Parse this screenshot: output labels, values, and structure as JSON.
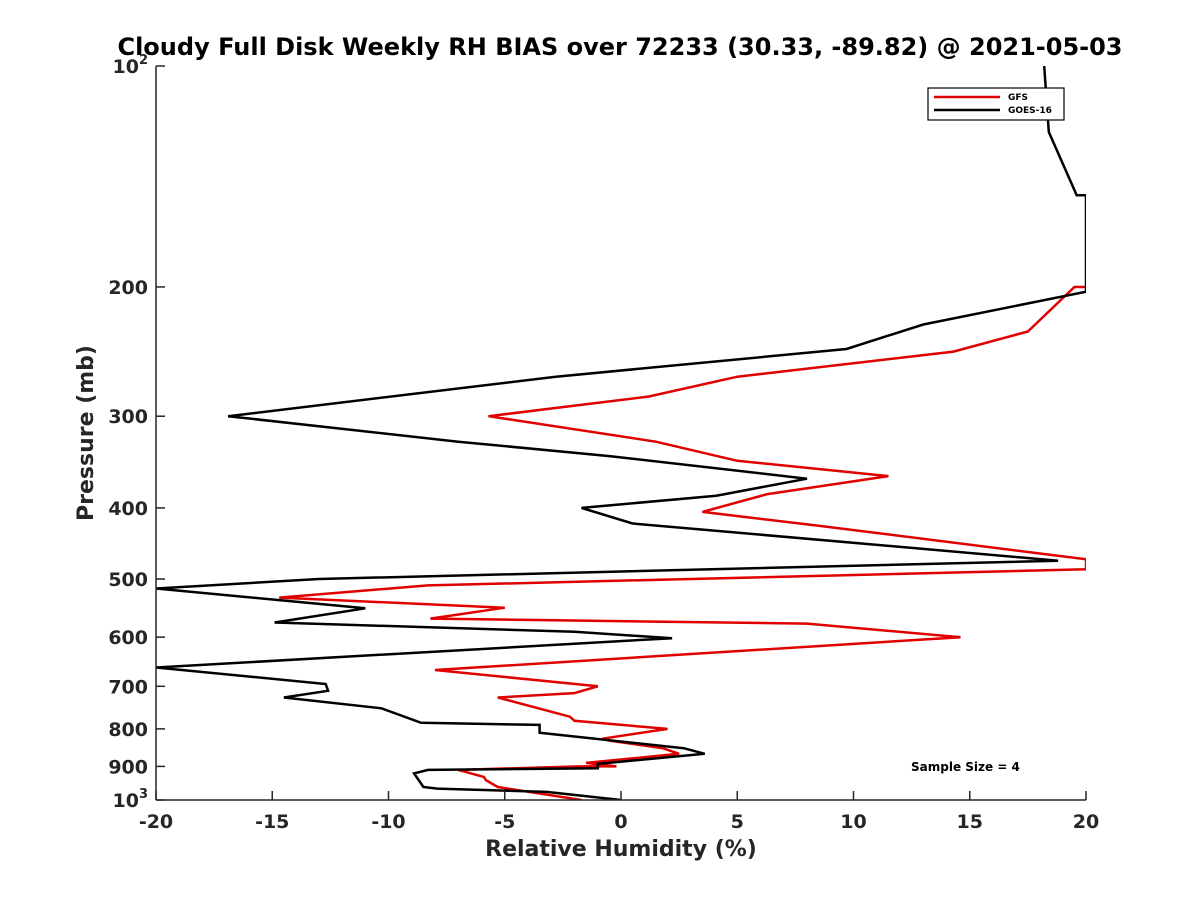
{
  "chart_data": {
    "type": "line",
    "title": "Cloudy Full Disk Weekly RH BIAS over 72233 (30.33, -89.82) @ 2021-05-03",
    "xlabel": "Relative Humidity (%)",
    "ylabel": "Pressure (mb)",
    "xlim": [
      -20,
      20
    ],
    "ylim": [
      100,
      1000
    ],
    "yscale": "log",
    "y_reversed": true,
    "xticks": [
      -20,
      -15,
      -10,
      -5,
      0,
      5,
      10,
      15,
      20
    ],
    "xtick_labels": [
      "-20",
      "-15",
      "-10",
      "-5",
      "0",
      "5",
      "10",
      "15",
      "20"
    ],
    "yticks": [
      100,
      200,
      300,
      400,
      500,
      600,
      700,
      800,
      900,
      1000
    ],
    "ytick_labels": [
      {
        "base": "10",
        "exp": "2"
      },
      {
        "base": "200",
        "exp": ""
      },
      {
        "base": "300",
        "exp": ""
      },
      {
        "base": "400",
        "exp": ""
      },
      {
        "base": "500",
        "exp": ""
      },
      {
        "base": "600",
        "exp": ""
      },
      {
        "base": "700",
        "exp": ""
      },
      {
        "base": "800",
        "exp": ""
      },
      {
        "base": "900",
        "exp": ""
      },
      {
        "base": "10",
        "exp": "3"
      }
    ],
    "legend_position": "top-right",
    "annotation": "Sample Size = 4",
    "series": [
      {
        "name": "GFS",
        "color": "#e00000",
        "points": [
          [
            -1.7,
            1000
          ],
          [
            -5.3,
            960
          ],
          [
            -5.8,
            940
          ],
          [
            -5.9,
            930
          ],
          [
            -7.0,
            910
          ],
          [
            -1.8,
            900
          ],
          [
            -0.2,
            900
          ],
          [
            -1.5,
            890
          ],
          [
            2.5,
            865
          ],
          [
            1.8,
            850
          ],
          [
            -0.5,
            830
          ],
          [
            -0.8,
            825
          ],
          [
            2.0,
            800
          ],
          [
            -2.0,
            780
          ],
          [
            -2.2,
            770
          ],
          [
            -5.3,
            725
          ],
          [
            -2.0,
            715
          ],
          [
            -1.0,
            700
          ],
          [
            -8.0,
            665
          ],
          [
            14.6,
            600
          ],
          [
            8.0,
            575
          ],
          [
            -8.2,
            566
          ],
          [
            -5.0,
            547
          ],
          [
            -14.7,
            530
          ],
          [
            -8.3,
            510
          ],
          [
            20.0,
            485
          ],
          [
            20.0,
            470
          ],
          [
            8.5,
            423
          ],
          [
            3.5,
            405
          ],
          [
            6.3,
            383
          ],
          [
            11.5,
            362
          ],
          [
            5.0,
            345
          ],
          [
            1.5,
            325
          ],
          [
            -5.7,
            300
          ],
          [
            1.2,
            282
          ],
          [
            5.0,
            265
          ],
          [
            14.3,
            245
          ],
          [
            17.5,
            230
          ],
          [
            19.5,
            200
          ],
          [
            20.0,
            200
          ]
        ]
      },
      {
        "name": "GOES-16",
        "color": "#000000",
        "points": [
          [
            0.0,
            1000
          ],
          [
            -3.2,
            975
          ],
          [
            -7.9,
            965
          ],
          [
            -8.5,
            960
          ],
          [
            -8.9,
            920
          ],
          [
            -8.3,
            910
          ],
          [
            -1.0,
            905
          ],
          [
            -1.0,
            893
          ],
          [
            3.6,
            865
          ],
          [
            2.7,
            850
          ],
          [
            -3.5,
            810
          ],
          [
            -3.5,
            790
          ],
          [
            -8.6,
            785
          ],
          [
            -10.3,
            750
          ],
          [
            -14.5,
            725
          ],
          [
            -12.6,
            710
          ],
          [
            -12.7,
            695
          ],
          [
            -20.0,
            660
          ],
          [
            2.2,
            602
          ],
          [
            -2.0,
            590
          ],
          [
            -14.9,
            573
          ],
          [
            -11.0,
            548
          ],
          [
            -20.0,
            515
          ],
          [
            -13.0,
            500
          ],
          [
            18.8,
            472
          ],
          [
            0.5,
            420
          ],
          [
            -1.7,
            400
          ],
          [
            4.1,
            385
          ],
          [
            8.0,
            365
          ],
          [
            -0.5,
            340
          ],
          [
            -7.0,
            325
          ],
          [
            -16.9,
            300
          ],
          [
            -2.8,
            265
          ],
          [
            9.7,
            243
          ],
          [
            13.0,
            225
          ],
          [
            20.0,
            203
          ],
          [
            20.0,
            150
          ],
          [
            19.6,
            150
          ],
          [
            18.4,
            123
          ],
          [
            18.2,
            100
          ]
        ]
      }
    ]
  }
}
